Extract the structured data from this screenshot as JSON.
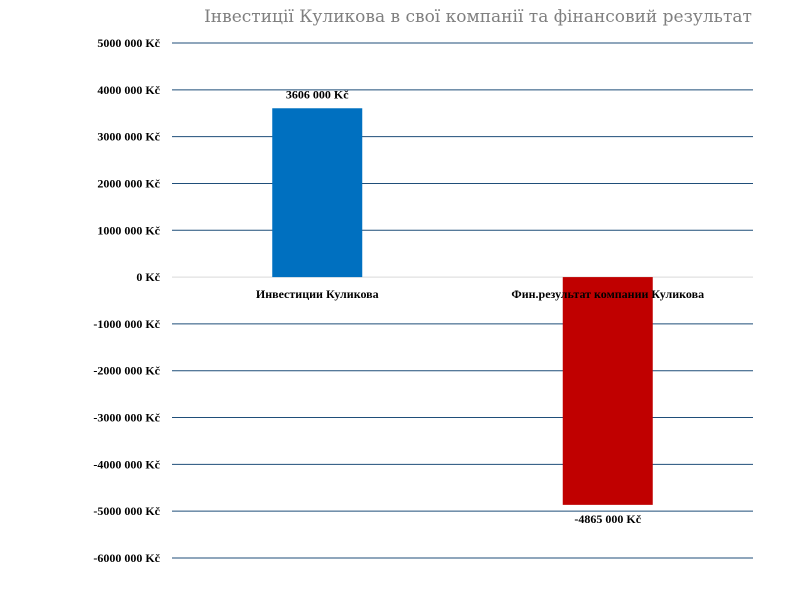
{
  "chart_data": {
    "type": "bar",
    "title": "Інвестиції Куликова в свої компанії та фінансовий результат",
    "categories": [
      "Инвестиции Куликова",
      "Фин.результат компании Куликова"
    ],
    "values": [
      3606000,
      -4865000
    ],
    "data_labels": [
      "3606 000 Kč",
      "-4865 000 Kč"
    ],
    "colors": [
      "#0070c0",
      "#c00000"
    ],
    "ylim": [
      -6000000,
      5000000
    ],
    "yticks": [
      5000000,
      4000000,
      3000000,
      2000000,
      1000000,
      0,
      -1000000,
      -2000000,
      -3000000,
      -4000000,
      -5000000,
      -6000000
    ],
    "ytick_labels": [
      "5000 000 Kč",
      "4000 000 Kč",
      "3000 000 Kč",
      "2000 000 Kč",
      "1000 000 Kč",
      "0 Kč",
      "-1000 000 Kč",
      "-2000 000 Kč",
      "-3000 000 Kč",
      "-4000 000 Kč",
      "-5000 000 Kč",
      "-6000 000 Kč"
    ],
    "grid": true,
    "legend": "none"
  }
}
